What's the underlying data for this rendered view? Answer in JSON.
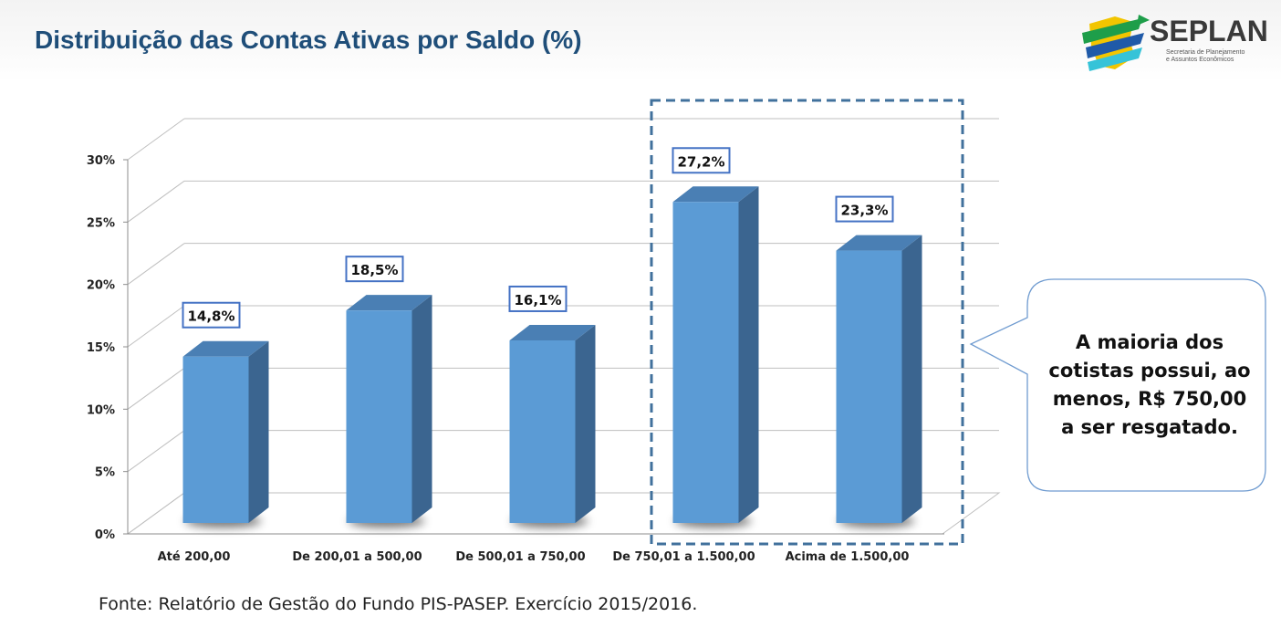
{
  "header": {
    "title": "Distribuição das Contas Ativas por Saldo (%)",
    "logo_name": "SEPLAN",
    "logo_subtitle_line1": "Secretaria de Planejamento",
    "logo_subtitle_line2": "e Assuntos Econômicos"
  },
  "colors": {
    "title": "#1f4e79",
    "bar_front": "#5b9bd5",
    "bar_side": "#3b6590",
    "bar_top": "#4a7fb4",
    "highlight_box": "#41719c",
    "label_border": "#4472c4"
  },
  "chart_data": {
    "type": "bar",
    "title": "Distribuição das Contas Ativas por Saldo (%)",
    "categories": [
      "Até 200,00",
      "De 200,01 a 500,00",
      "De 500,01 a 750,00",
      "De 750,01 a 1.500,00",
      "Acima de 1.500,00"
    ],
    "values": [
      14.8,
      18.5,
      16.1,
      27.2,
      23.3
    ],
    "data_labels": [
      "14,8%",
      "18,5%",
      "16,1%",
      "27,2%",
      "23,3%"
    ],
    "yticks": [
      0,
      5,
      10,
      15,
      20,
      25,
      30
    ],
    "ytick_labels": [
      "0%",
      "5%",
      "10%",
      "15%",
      "20%",
      "25%",
      "30%"
    ],
    "ylim": [
      0,
      30
    ],
    "xlabel": "",
    "ylabel": "",
    "grid": true,
    "highlighted_categories": [
      "De 750,01 a 1.500,00",
      "Acima de 1.500,00"
    ]
  },
  "callout": {
    "text": "A maioria dos cotistas possui, ao menos, R$ 750,00 a ser resgatado."
  },
  "footer": {
    "source": "Fonte: Relatório de Gestão do Fundo PIS-PASEP. Exercício 2015/2016."
  }
}
